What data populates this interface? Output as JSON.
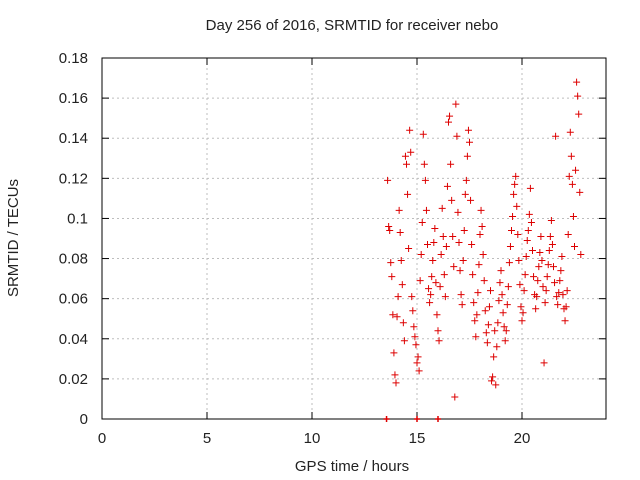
{
  "chart_data": {
    "type": "scatter",
    "title": "Day 256 of 2016, SRMTID for receiver nebo",
    "xlabel": "GPS time / hours",
    "ylabel": "SRMTID / TECUs",
    "xlim": [
      0,
      24
    ],
    "ylim": [
      0,
      0.18
    ],
    "xticks": [
      0,
      5,
      10,
      15,
      20
    ],
    "xtick_labels": [
      "0",
      "5",
      "10",
      "15",
      "20"
    ],
    "yticks": [
      0,
      0.02,
      0.04,
      0.06,
      0.08,
      0.1,
      0.12,
      0.14,
      0.16,
      0.18
    ],
    "ytick_labels": [
      "0",
      "0.02",
      "0.04",
      "0.06",
      "0.08",
      "0.1",
      "0.12",
      "0.14",
      "0.16",
      "0.18"
    ],
    "grid": true,
    "marker": "plus",
    "color": "#dd0000",
    "series": [
      {
        "name": "SRMTID",
        "points": [
          [
            13.6,
            0.119
          ],
          [
            13.65,
            0.096
          ],
          [
            13.7,
            0.094
          ],
          [
            13.75,
            0.078
          ],
          [
            13.8,
            0.071
          ],
          [
            13.85,
            0.052
          ],
          [
            13.9,
            0.033
          ],
          [
            13.95,
            0.022
          ],
          [
            14.0,
            0.018
          ],
          [
            14.05,
            0.051
          ],
          [
            14.1,
            0.061
          ],
          [
            14.15,
            0.104
          ],
          [
            14.2,
            0.093
          ],
          [
            14.25,
            0.079
          ],
          [
            14.3,
            0.067
          ],
          [
            14.35,
            0.048
          ],
          [
            14.4,
            0.039
          ],
          [
            14.45,
            0.131
          ],
          [
            14.5,
            0.127
          ],
          [
            14.55,
            0.112
          ],
          [
            14.6,
            0.085
          ],
          [
            14.65,
            0.144
          ],
          [
            14.7,
            0.133
          ],
          [
            14.75,
            0.061
          ],
          [
            14.8,
            0.054
          ],
          [
            14.85,
            0.046
          ],
          [
            14.9,
            0.041
          ],
          [
            14.95,
            0.037
          ],
          [
            15.0,
            0.028
          ],
          [
            15.05,
            0.031
          ],
          [
            15.1,
            0.024
          ],
          [
            15.15,
            0.069
          ],
          [
            15.2,
            0.082
          ],
          [
            15.25,
            0.098
          ],
          [
            15.3,
            0.142
          ],
          [
            15.35,
            0.127
          ],
          [
            15.4,
            0.119
          ],
          [
            15.45,
            0.104
          ],
          [
            15.5,
            0.087
          ],
          [
            15.55,
            0.065
          ],
          [
            15.6,
            0.058
          ],
          [
            15.65,
            0.062
          ],
          [
            15.7,
            0.071
          ],
          [
            15.75,
            0.079
          ],
          [
            15.8,
            0.088
          ],
          [
            15.85,
            0.095
          ],
          [
            15.9,
            0.068
          ],
          [
            15.95,
            0.052
          ],
          [
            16.0,
            0.044
          ],
          [
            16.05,
            0.039
          ],
          [
            16.1,
            0.066
          ],
          [
            16.15,
            0.082
          ],
          [
            16.2,
            0.105
          ],
          [
            16.25,
            0.091
          ],
          [
            16.3,
            0.072
          ],
          [
            16.35,
            0.061
          ],
          [
            16.4,
            0.086
          ],
          [
            16.45,
            0.116
          ],
          [
            16.5,
            0.148
          ],
          [
            16.55,
            0.151
          ],
          [
            16.6,
            0.127
          ],
          [
            16.65,
            0.109
          ],
          [
            16.7,
            0.091
          ],
          [
            16.75,
            0.076
          ],
          [
            16.8,
            0.011
          ],
          [
            16.85,
            0.157
          ],
          [
            16.9,
            0.141
          ],
          [
            16.95,
            0.103
          ],
          [
            17.0,
            0.088
          ],
          [
            17.05,
            0.074
          ],
          [
            17.1,
            0.062
          ],
          [
            17.15,
            0.057
          ],
          [
            17.2,
            0.079
          ],
          [
            17.25,
            0.094
          ],
          [
            17.3,
            0.112
          ],
          [
            17.35,
            0.119
          ],
          [
            17.4,
            0.131
          ],
          [
            17.45,
            0.144
          ],
          [
            17.5,
            0.138
          ],
          [
            17.55,
            0.109
          ],
          [
            17.6,
            0.087
          ],
          [
            17.65,
            0.072
          ],
          [
            17.7,
            0.058
          ],
          [
            17.75,
            0.049
          ],
          [
            17.8,
            0.041
          ],
          [
            17.85,
            0.052
          ],
          [
            17.9,
            0.063
          ],
          [
            17.95,
            0.077
          ],
          [
            18.0,
            0.092
          ],
          [
            18.05,
            0.104
          ],
          [
            18.1,
            0.096
          ],
          [
            18.15,
            0.082
          ],
          [
            18.2,
            0.069
          ],
          [
            18.25,
            0.054
          ],
          [
            18.3,
            0.043
          ],
          [
            18.35,
            0.038
          ],
          [
            18.4,
            0.047
          ],
          [
            18.45,
            0.056
          ],
          [
            18.5,
            0.064
          ],
          [
            18.55,
            0.019
          ],
          [
            18.6,
            0.021
          ],
          [
            18.65,
            0.031
          ],
          [
            18.7,
            0.044
          ],
          [
            18.75,
            0.017
          ],
          [
            18.8,
            0.036
          ],
          [
            18.85,
            0.048
          ],
          [
            18.9,
            0.059
          ],
          [
            18.95,
            0.068
          ],
          [
            19.0,
            0.074
          ],
          [
            19.05,
            0.062
          ],
          [
            19.1,
            0.053
          ],
          [
            19.15,
            0.046
          ],
          [
            19.2,
            0.039
          ],
          [
            19.25,
            0.044
          ],
          [
            19.3,
            0.057
          ],
          [
            19.35,
            0.066
          ],
          [
            19.4,
            0.078
          ],
          [
            19.45,
            0.086
          ],
          [
            19.5,
            0.094
          ],
          [
            19.55,
            0.101
          ],
          [
            19.6,
            0.112
          ],
          [
            19.65,
            0.117
          ],
          [
            19.7,
            0.121
          ],
          [
            19.75,
            0.106
          ],
          [
            19.8,
            0.092
          ],
          [
            19.85,
            0.079
          ],
          [
            19.9,
            0.067
          ],
          [
            19.95,
            0.056
          ],
          [
            20.0,
            0.049
          ],
          [
            20.05,
            0.053
          ],
          [
            20.1,
            0.064
          ],
          [
            20.15,
            0.072
          ],
          [
            20.2,
            0.081
          ],
          [
            20.25,
            0.089
          ],
          [
            20.3,
            0.094
          ],
          [
            20.35,
            0.102
          ],
          [
            20.4,
            0.115
          ],
          [
            20.45,
            0.098
          ],
          [
            20.5,
            0.084
          ],
          [
            20.55,
            0.071
          ],
          [
            20.6,
            0.062
          ],
          [
            20.65,
            0.055
          ],
          [
            20.7,
            0.061
          ],
          [
            20.75,
            0.069
          ],
          [
            20.8,
            0.076
          ],
          [
            20.85,
            0.083
          ],
          [
            20.9,
            0.091
          ],
          [
            20.95,
            0.079
          ],
          [
            21.0,
            0.066
          ],
          [
            21.05,
            0.028
          ],
          [
            21.1,
            0.058
          ],
          [
            21.15,
            0.064
          ],
          [
            21.2,
            0.071
          ],
          [
            21.25,
            0.077
          ],
          [
            21.3,
            0.084
          ],
          [
            21.35,
            0.091
          ],
          [
            21.4,
            0.099
          ],
          [
            21.45,
            0.087
          ],
          [
            21.5,
            0.076
          ],
          [
            21.55,
            0.068
          ],
          [
            21.6,
            0.141
          ],
          [
            21.65,
            0.061
          ],
          [
            21.7,
            0.057
          ],
          [
            21.75,
            0.063
          ],
          [
            21.8,
            0.069
          ],
          [
            21.85,
            0.074
          ],
          [
            21.9,
            0.081
          ],
          [
            21.95,
            0.062
          ],
          [
            22.0,
            0.055
          ],
          [
            22.05,
            0.049
          ],
          [
            22.1,
            0.056
          ],
          [
            22.15,
            0.064
          ],
          [
            22.2,
            0.092
          ],
          [
            22.25,
            0.121
          ],
          [
            22.3,
            0.143
          ],
          [
            22.35,
            0.131
          ],
          [
            22.4,
            0.117
          ],
          [
            22.45,
            0.101
          ],
          [
            22.5,
            0.086
          ],
          [
            22.55,
            0.124
          ],
          [
            22.6,
            0.168
          ],
          [
            22.65,
            0.161
          ],
          [
            22.7,
            0.152
          ],
          [
            22.75,
            0.113
          ],
          [
            22.8,
            0.082
          ]
        ]
      }
    ],
    "zero_points": [
      13.55,
      15.0,
      16.0
    ]
  }
}
